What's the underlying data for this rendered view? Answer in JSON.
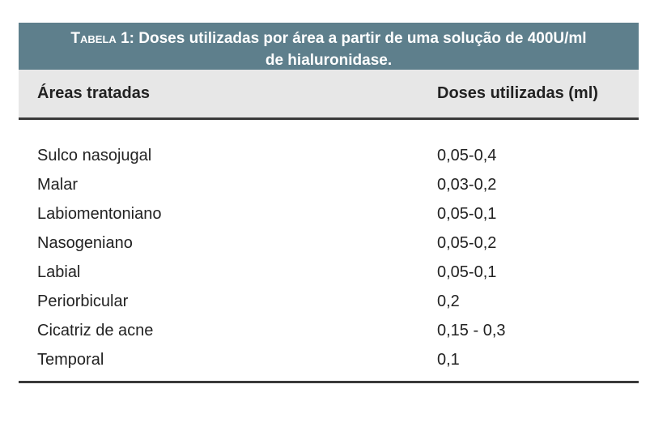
{
  "table": {
    "caption_lead": "Tabela 1:",
    "caption_rest_line1": " Doses utilizadas por área a partir de uma solução de 400U/ml",
    "caption_line2": "de hialuronidase.",
    "headers": [
      "Áreas tratadas",
      "Doses utilizadas (ml)"
    ],
    "rows": [
      [
        "Sulco nasojugal",
        "0,05-0,4"
      ],
      [
        "Malar",
        "0,03-0,2"
      ],
      [
        "Labiomentoniano",
        "0,05-0,1"
      ],
      [
        "Nasogeniano",
        "0,05-0,2"
      ],
      [
        "Labial",
        "0,05-0,1"
      ],
      [
        "Periorbicular",
        "0,2"
      ],
      [
        "Cicatriz de acne",
        "0,15 - 0,3"
      ],
      [
        "Temporal",
        "0,1"
      ]
    ]
  },
  "colors": {
    "caption_bg": "#5e7f8c",
    "header_bg": "#e7e7e7",
    "rule": "#3a3a3a"
  }
}
